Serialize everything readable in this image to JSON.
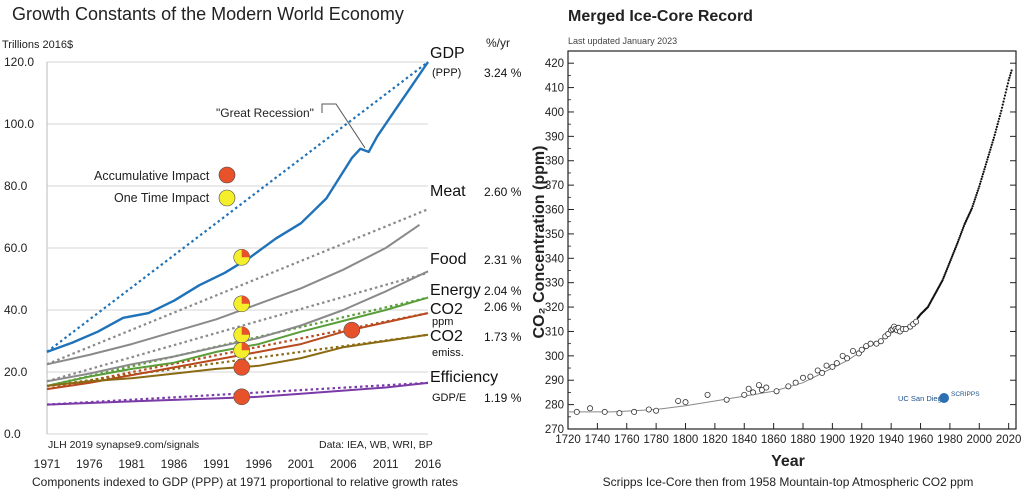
{
  "chart_data": [
    {
      "type": "line",
      "title": "Growth Constants of the Modern World Economy",
      "ylabel": "Trillions 2016$",
      "xlabel": "Components indexed to GDP (PPP) at 1971 proportional to relative growth rates",
      "rate_header": "%/yr",
      "xlim": [
        1971,
        2016
      ],
      "ylim": [
        0,
        120
      ],
      "x_ticks": [
        "1971",
        "1976",
        "1981",
        "1986",
        "1991",
        "1996",
        "2001",
        "2006",
        "2011",
        "2016"
      ],
      "y_ticks": [
        "0.0",
        "20.0",
        "40.0",
        "60.0",
        "80.0",
        "100.0",
        "120.0"
      ],
      "grid": true,
      "credit_left": "JLH 2019   synapse9.com/signals",
      "credit_right": "Data: IEA, WB, WRI, BP",
      "annotations": {
        "recession": "\"Great Recession\"",
        "accumulative": "Accumulative Impact",
        "one_time": "One Time Impact",
        "accumulative_color": "#e8522a",
        "one_time_color": "#f4ef2a"
      },
      "series": [
        {
          "name": "GDP",
          "sublabel": "(PPP)",
          "rate": "3.24 %",
          "color": "#1f72b8",
          "x": [
            1971,
            1974,
            1977,
            1980,
            1983,
            1986,
            1989,
            1992,
            1995,
            1998,
            2001,
            2004,
            2007,
            2008,
            2009,
            2010,
            2012,
            2014,
            2016
          ],
          "values": [
            26.5,
            29.5,
            33,
            37.5,
            39,
            43,
            48,
            52,
            57,
            63,
            68,
            76,
            89,
            92,
            91,
            96,
            104,
            112,
            120
          ],
          "trend": [
            26.5,
            120
          ]
        },
        {
          "name": "Meat",
          "sublabel": "",
          "rate": "2.60 %",
          "color": "#8a8a8a",
          "x": [
            1971,
            1976,
            1981,
            1986,
            1991,
            1996,
            2001,
            2006,
            2011,
            2015
          ],
          "values": [
            22.5,
            25.5,
            29,
            33,
            37,
            42,
            47,
            53,
            60,
            67.5
          ],
          "trend": [
            22.5,
            72.5
          ]
        },
        {
          "name": "Food",
          "sublabel": "",
          "rate": "2.31 %",
          "color": "#8a8a8a",
          "x": [
            1971,
            1976,
            1981,
            1986,
            1991,
            1996,
            2001,
            2006,
            2011,
            2016
          ],
          "values": [
            17,
            19.5,
            22.5,
            25,
            28,
            31,
            35,
            40,
            46,
            52.5
          ],
          "trend": [
            17,
            52
          ]
        },
        {
          "name": "Energy",
          "sublabel": "",
          "rate": "2.04 %",
          "color": "#5a9e3a",
          "x": [
            1971,
            1976,
            1981,
            1986,
            1991,
            1996,
            2001,
            2006,
            2011,
            2016
          ],
          "values": [
            15.5,
            18.5,
            21,
            23,
            26.5,
            29,
            33,
            36.5,
            40,
            44
          ],
          "trend": [
            15.5,
            44
          ]
        },
        {
          "name": "CO2",
          "sublabel": "ppm",
          "rate": "2.06 %",
          "color": "#b84a1e",
          "x": [
            1971,
            1976,
            1981,
            1986,
            1991,
            1996,
            2001,
            2006,
            2011,
            2016
          ],
          "values": [
            14.5,
            16.5,
            19,
            21.5,
            24,
            26.5,
            29,
            33,
            36,
            39
          ],
          "trend": [
            14.5,
            39
          ]
        },
        {
          "name": "CO2",
          "sublabel": "emiss.",
          "rate": "1.73 %",
          "color": "#8a6a12",
          "x": [
            1971,
            1976,
            1981,
            1986,
            1991,
            1996,
            2001,
            2006,
            2011,
            2016
          ],
          "values": [
            15.5,
            17,
            18,
            19.5,
            21,
            22,
            24.5,
            28,
            30,
            32
          ],
          "trend": [
            15.5,
            32
          ]
        },
        {
          "name": "Efficiency",
          "sublabel": "GDP/E",
          "rate": "1.19 %",
          "color": "#7a3aa8",
          "x": [
            1971,
            1976,
            1981,
            1986,
            1991,
            1996,
            2001,
            2006,
            2011,
            2016
          ],
          "values": [
            9.5,
            10,
            10.5,
            11,
            11.5,
            12,
            13,
            14,
            15,
            16.5
          ],
          "trend": [
            9.5,
            16.5
          ]
        }
      ],
      "markers": [
        {
          "x": 1994,
          "y": 57,
          "kind": "one_time"
        },
        {
          "x": 1994,
          "y": 42,
          "kind": "one_time"
        },
        {
          "x": 1994,
          "y": 32,
          "kind": "one_time"
        },
        {
          "x": 1994,
          "y": 27,
          "kind": "one_time"
        },
        {
          "x": 1994,
          "y": 21.5,
          "kind": "accumulative"
        },
        {
          "x": 1994,
          "y": 12,
          "kind": "accumulative"
        },
        {
          "x": 2007,
          "y": 33.5,
          "kind": "accumulative"
        }
      ]
    },
    {
      "type": "scatter",
      "title": "Merged Ice-Core Record",
      "subtitle": "Last updated January 2023",
      "ylabel": "CO₂ Concentration (ppm)",
      "xlabel": "Year",
      "caption": "Scripps Ice-Core then from 1958 Mountain-top Atmospheric CO2 ppm",
      "xlim": [
        1720,
        2025
      ],
      "ylim": [
        270,
        425
      ],
      "x_ticks": [
        "1720",
        "1740",
        "1760",
        "1780",
        "1800",
        "1820",
        "1840",
        "1860",
        "1880",
        "1900",
        "1920",
        "1940",
        "1960",
        "1980",
        "2000",
        "2020"
      ],
      "y_ticks": [
        "270",
        "280",
        "290",
        "300",
        "310",
        "320",
        "330",
        "340",
        "350",
        "360",
        "370",
        "380",
        "390",
        "400",
        "410",
        "420"
      ],
      "logos": [
        "UC San Diego",
        "SCRIPPS"
      ],
      "ice_core": {
        "x": [
          1726,
          1735,
          1745,
          1755,
          1765,
          1775,
          1780,
          1795,
          1800,
          1815,
          1828,
          1840,
          1843,
          1846,
          1850,
          1852,
          1855,
          1862,
          1870,
          1875,
          1880,
          1885,
          1890,
          1893,
          1896,
          1900,
          1903,
          1907,
          1910,
          1914,
          1918,
          1920,
          1923,
          1926,
          1930,
          1933,
          1936,
          1938,
          1940,
          1941,
          1942,
          1943,
          1944,
          1945,
          1946,
          1948,
          1950,
          1953,
          1955,
          1957
        ],
        "values": [
          277,
          278.5,
          277,
          276.5,
          277,
          278,
          277.5,
          281.5,
          281,
          284,
          282,
          284,
          286.5,
          285,
          288,
          286,
          287,
          285.5,
          287.5,
          289,
          291,
          291.5,
          294,
          293,
          296,
          295.5,
          297,
          300,
          299,
          302,
          301,
          302.5,
          304,
          305,
          305,
          306,
          308,
          309,
          310.5,
          311,
          312,
          311,
          310.5,
          311.5,
          310,
          311,
          311,
          312,
          313,
          314
        ]
      },
      "smooth": {
        "x": [
          1720,
          1750,
          1780,
          1800,
          1820,
          1840,
          1860,
          1880,
          1900,
          1910,
          1920,
          1930,
          1940,
          1950,
          1958
        ],
        "values": [
          277,
          277,
          278,
          279.5,
          281.5,
          283.5,
          285.5,
          289,
          295,
          298,
          302,
          305.5,
          309.5,
          311.5,
          315
        ]
      },
      "atmospheric": {
        "x": [
          1958,
          1960,
          1965,
          1970,
          1975,
          1980,
          1985,
          1990,
          1995,
          2000,
          2005,
          2010,
          2015,
          2020,
          2022
        ],
        "values": [
          315.5,
          317,
          320,
          325.5,
          331,
          338.5,
          346,
          354,
          360.5,
          369.5,
          379.5,
          389.5,
          400.5,
          413,
          417
        ]
      }
    }
  ]
}
